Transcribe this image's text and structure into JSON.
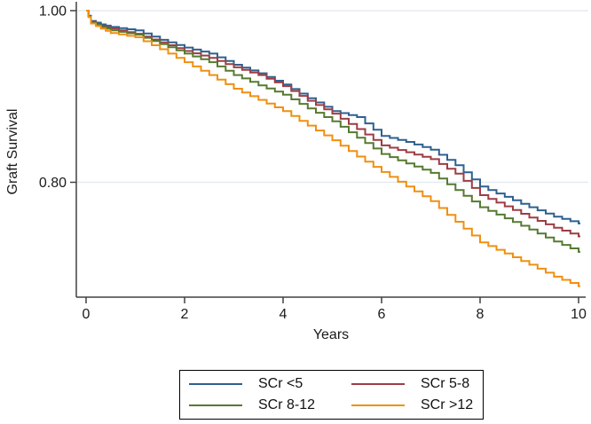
{
  "figure": {
    "background_color": "#ffffff",
    "axis_color": "#404040",
    "text_color": "#1a1a1a",
    "gridline_color": "#e3ecf2",
    "legend_border_color": "#000000"
  },
  "chart_data": {
    "type": "line",
    "subtype": "kaplan-meier-step",
    "title": "",
    "xlabel": "Years",
    "ylabel": "Graft Survival",
    "xlim": [
      0,
      10
    ],
    "ylim_displayed": [
      0.666,
      1.012
    ],
    "xticks": [
      {
        "value": 0,
        "label": "0"
      },
      {
        "value": 2,
        "label": "2"
      },
      {
        "value": 4,
        "label": "4"
      },
      {
        "value": 6,
        "label": "6"
      },
      {
        "value": 8,
        "label": "8"
      },
      {
        "value": 10,
        "label": "10"
      }
    ],
    "yticks": [
      {
        "value": 1.0,
        "label": "1.00"
      },
      {
        "value": 0.8,
        "label": "0.80"
      }
    ],
    "grid": "horizontal-at-yticks",
    "legend_position": "bottom-outside",
    "legend_layout_rows": [
      [
        "SCr <5",
        "SCr 5-8"
      ],
      [
        "SCr 8-12",
        "SCr >12"
      ]
    ],
    "x": [
      0,
      0.1,
      0.3,
      0.5,
      1,
      1.5,
      2,
      2.5,
      3,
      3.5,
      4,
      4.5,
      5,
      5.5,
      6,
      6.5,
      7,
      7.5,
      8,
      8.5,
      9,
      9.5,
      10
    ],
    "series": [
      {
        "name": "SCr <5",
        "color": "#2e6090",
        "values": [
          1.0,
          0.988,
          0.984,
          0.981,
          0.977,
          0.966,
          0.957,
          0.95,
          0.937,
          0.927,
          0.914,
          0.898,
          0.883,
          0.876,
          0.854,
          0.847,
          0.838,
          0.82,
          0.795,
          0.783,
          0.771,
          0.76,
          0.752
        ]
      },
      {
        "name": "SCr 5-8",
        "color": "#9d3d44",
        "values": [
          1.0,
          0.987,
          0.982,
          0.979,
          0.973,
          0.963,
          0.953,
          0.945,
          0.934,
          0.925,
          0.912,
          0.895,
          0.88,
          0.862,
          0.843,
          0.835,
          0.827,
          0.81,
          0.785,
          0.772,
          0.759,
          0.747,
          0.737
        ]
      },
      {
        "name": "SCr 8-12",
        "color": "#567a31",
        "values": [
          1.0,
          0.986,
          0.981,
          0.977,
          0.972,
          0.961,
          0.95,
          0.94,
          0.925,
          0.913,
          0.902,
          0.886,
          0.871,
          0.852,
          0.833,
          0.822,
          0.811,
          0.791,
          0.771,
          0.758,
          0.745,
          0.731,
          0.719
        ]
      },
      {
        "name": "SCr >12",
        "color": "#ef9011",
        "values": [
          1.0,
          0.985,
          0.979,
          0.974,
          0.969,
          0.955,
          0.94,
          0.925,
          0.909,
          0.896,
          0.883,
          0.866,
          0.849,
          0.83,
          0.812,
          0.795,
          0.778,
          0.754,
          0.73,
          0.717,
          0.704,
          0.69,
          0.679
        ]
      }
    ]
  }
}
